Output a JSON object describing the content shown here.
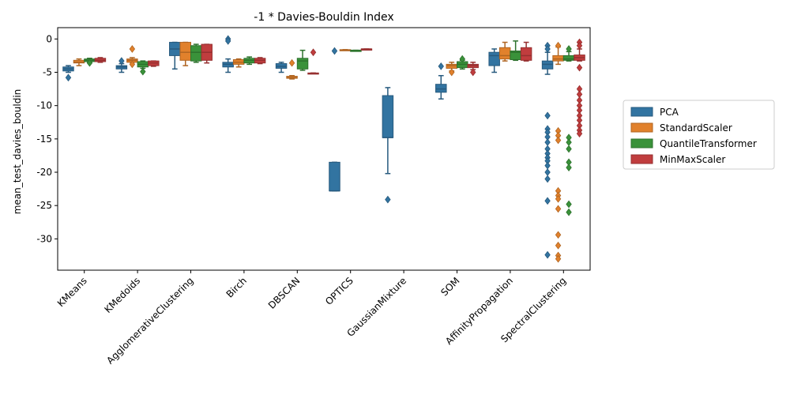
{
  "chart_data": {
    "type": "box",
    "title": "-1 * Davies-Bouldin Index",
    "xlabel": "",
    "ylabel": "mean_test_davies_bouldin",
    "ylim": [
      -34.7,
      1.7
    ],
    "yticks": [
      0,
      -5,
      -10,
      -15,
      -20,
      -25,
      -30
    ],
    "grid": false,
    "legend_position": "right",
    "categories": [
      "KMeans",
      "KMedoids",
      "AgglomerativeClustering",
      "Birch",
      "DBSCAN",
      "OPTICS",
      "GaussianMixture",
      "SOM",
      "AffinityPropagation",
      "SpectralClustering"
    ],
    "series": [
      {
        "name": "PCA",
        "color": "#3274a1",
        "boxes": [
          {
            "q1": -4.8,
            "median": -4.5,
            "q3": -4.2,
            "whislo": -5.0,
            "whishi": -4.0,
            "fliers": [
              -5.8
            ]
          },
          {
            "q1": -4.5,
            "median": -4.2,
            "q3": -4.0,
            "whislo": -5.0,
            "whishi": -3.7,
            "fliers": [
              -3.3
            ]
          },
          {
            "q1": -2.5,
            "median": -1.5,
            "q3": -0.5,
            "whislo": -4.5,
            "whishi": -0.5,
            "fliers": []
          },
          {
            "q1": -4.2,
            "median": -3.8,
            "q3": -3.5,
            "whislo": -5.0,
            "whishi": -3.0,
            "fliers": [
              0.0,
              -0.3
            ]
          },
          {
            "q1": -4.4,
            "median": -4.1,
            "q3": -3.7,
            "whislo": -5.0,
            "whishi": -3.5,
            "fliers": []
          },
          {
            "q1": -22.8,
            "median": -22.8,
            "q3": -18.5,
            "whislo": -22.8,
            "whishi": -18.5,
            "fliers": [
              -1.8
            ]
          },
          {
            "q1": -14.8,
            "median": -14.8,
            "q3": -8.5,
            "whislo": -20.2,
            "whishi": -7.3,
            "fliers": [
              -24.1
            ]
          },
          {
            "q1": -8.0,
            "median": -7.5,
            "q3": -6.8,
            "whislo": -9.0,
            "whishi": -5.5,
            "fliers": [
              -4.1
            ]
          },
          {
            "q1": -4.0,
            "median": -2.5,
            "q3": -2.0,
            "whislo": -5.0,
            "whishi": -1.5,
            "fliers": []
          },
          {
            "q1": -4.5,
            "median": -3.8,
            "q3": -3.3,
            "whislo": -5.3,
            "whishi": -2.0,
            "fliers": [
              -1.0,
              -1.5,
              -11.5,
              -13.5,
              -14.0,
              -14.7,
              -15.5,
              -16.5,
              -17.2,
              -17.8,
              -18.3,
              -19.0,
              -20.0,
              -21.0,
              -24.3,
              -32.4
            ]
          }
        ]
      },
      {
        "name": "StandardScaler",
        "color": "#e1812c",
        "boxes": [
          {
            "q1": -3.6,
            "median": -3.5,
            "q3": -3.2,
            "whislo": -4.0,
            "whishi": -3.0,
            "fliers": []
          },
          {
            "q1": -3.5,
            "median": -3.2,
            "q3": -3.0,
            "whislo": -3.5,
            "whishi": -2.8,
            "fliers": [
              -1.5,
              -3.8
            ]
          },
          {
            "q1": -3.2,
            "median": -2.0,
            "q3": -0.5,
            "whislo": -4.0,
            "whishi": -0.5,
            "fliers": []
          },
          {
            "q1": -3.8,
            "median": -3.5,
            "q3": -3.1,
            "whislo": -4.2,
            "whishi": -3.0,
            "fliers": []
          },
          {
            "q1": -5.9,
            "median": -5.8,
            "q3": -5.6,
            "whislo": -6.0,
            "whishi": -5.5,
            "fliers": [
              -3.6
            ]
          },
          {
            "q1": -1.7,
            "median": -1.7,
            "q3": -1.6,
            "whislo": -1.7,
            "whishi": -1.6,
            "fliers": []
          },
          null,
          {
            "q1": -4.4,
            "median": -4.0,
            "q3": -3.8,
            "whislo": -4.8,
            "whishi": -3.5,
            "fliers": [
              -5.0
            ]
          },
          {
            "q1": -3.0,
            "median": -2.5,
            "q3": -1.3,
            "whislo": -3.3,
            "whishi": -0.5,
            "fliers": []
          },
          {
            "q1": -3.3,
            "median": -3.0,
            "q3": -2.5,
            "whislo": -3.8,
            "whishi": -1.2,
            "fliers": [
              -1.0,
              -13.8,
              -14.5,
              -15.2,
              -22.8,
              -23.5,
              -24.0,
              -25.5,
              -29.4,
              -31.0,
              -32.5,
              -33.0
            ]
          }
        ]
      },
      {
        "name": "QuantileTransformer",
        "color": "#3a923a",
        "boxes": [
          {
            "q1": -3.4,
            "median": -3.2,
            "q3": -3.0,
            "whislo": -3.5,
            "whishi": -2.9,
            "fliers": [
              -3.6
            ]
          },
          {
            "q1": -4.2,
            "median": -3.8,
            "q3": -3.4,
            "whislo": -4.4,
            "whishi": -3.3,
            "fliers": [
              -4.9
            ]
          },
          {
            "q1": -3.3,
            "median": -2.0,
            "q3": -1.0,
            "whislo": -3.5,
            "whishi": -0.8,
            "fliers": []
          },
          {
            "q1": -3.6,
            "median": -3.2,
            "q3": -2.9,
            "whislo": -3.8,
            "whishi": -2.7,
            "fliers": []
          },
          {
            "q1": -4.5,
            "median": -3.3,
            "q3": -2.9,
            "whislo": -4.7,
            "whishi": -1.7,
            "fliers": []
          },
          {
            "q1": -1.7,
            "median": -1.7,
            "q3": -1.7,
            "whislo": -1.7,
            "whishi": -1.7,
            "fliers": []
          },
          null,
          {
            "q1": -4.3,
            "median": -3.8,
            "q3": -3.4,
            "whislo": -4.5,
            "whishi": -3.2,
            "fliers": [
              -3.0
            ]
          },
          {
            "q1": -3.1,
            "median": -2.0,
            "q3": -1.8,
            "whislo": -3.2,
            "whishi": -0.3,
            "fliers": []
          },
          {
            "q1": -3.2,
            "median": -3.0,
            "q3": -2.5,
            "whislo": -3.3,
            "whishi": -1.9,
            "fliers": [
              -1.5,
              -14.8,
              -15.5,
              -16.5,
              -18.5,
              -19.3,
              -24.8,
              -26.0
            ]
          }
        ]
      },
      {
        "name": "MinMaxScaler",
        "color": "#c03d3e",
        "boxes": [
          {
            "q1": -3.4,
            "median": -3.2,
            "q3": -2.9,
            "whislo": -3.5,
            "whishi": -2.8,
            "fliers": []
          },
          {
            "q1": -4.0,
            "median": -3.6,
            "q3": -3.3,
            "whislo": -4.1,
            "whishi": -3.3,
            "fliers": []
          },
          {
            "q1": -3.2,
            "median": -2.0,
            "q3": -0.8,
            "whislo": -3.6,
            "whishi": -0.8,
            "fliers": []
          },
          {
            "q1": -3.6,
            "median": -3.2,
            "q3": -2.9,
            "whislo": -3.7,
            "whishi": -2.8,
            "fliers": []
          },
          {
            "q1": -5.2,
            "median": -5.2,
            "q3": -5.1,
            "whislo": -5.2,
            "whishi": -5.1,
            "fliers": [
              -2.0
            ]
          },
          {
            "q1": -1.6,
            "median": -1.5,
            "q3": -1.5,
            "whislo": -1.6,
            "whishi": -1.5,
            "fliers": []
          },
          null,
          {
            "q1": -4.3,
            "median": -4.0,
            "q3": -3.8,
            "whislo": -4.6,
            "whishi": -3.5,
            "fliers": [
              -5.0
            ]
          },
          {
            "q1": -3.2,
            "median": -2.5,
            "q3": -1.3,
            "whislo": -3.3,
            "whishi": -0.5,
            "fliers": []
          },
          {
            "q1": -3.2,
            "median": -2.8,
            "q3": -2.4,
            "whislo": -3.3,
            "whishi": -1.5,
            "fliers": [
              -0.5,
              -1.0,
              -4.3,
              -7.5,
              -8.3,
              -9.2,
              -10.0,
              -10.7,
              -11.5,
              -12.2,
              -13.0,
              -13.7,
              -14.2
            ]
          }
        ]
      }
    ]
  }
}
